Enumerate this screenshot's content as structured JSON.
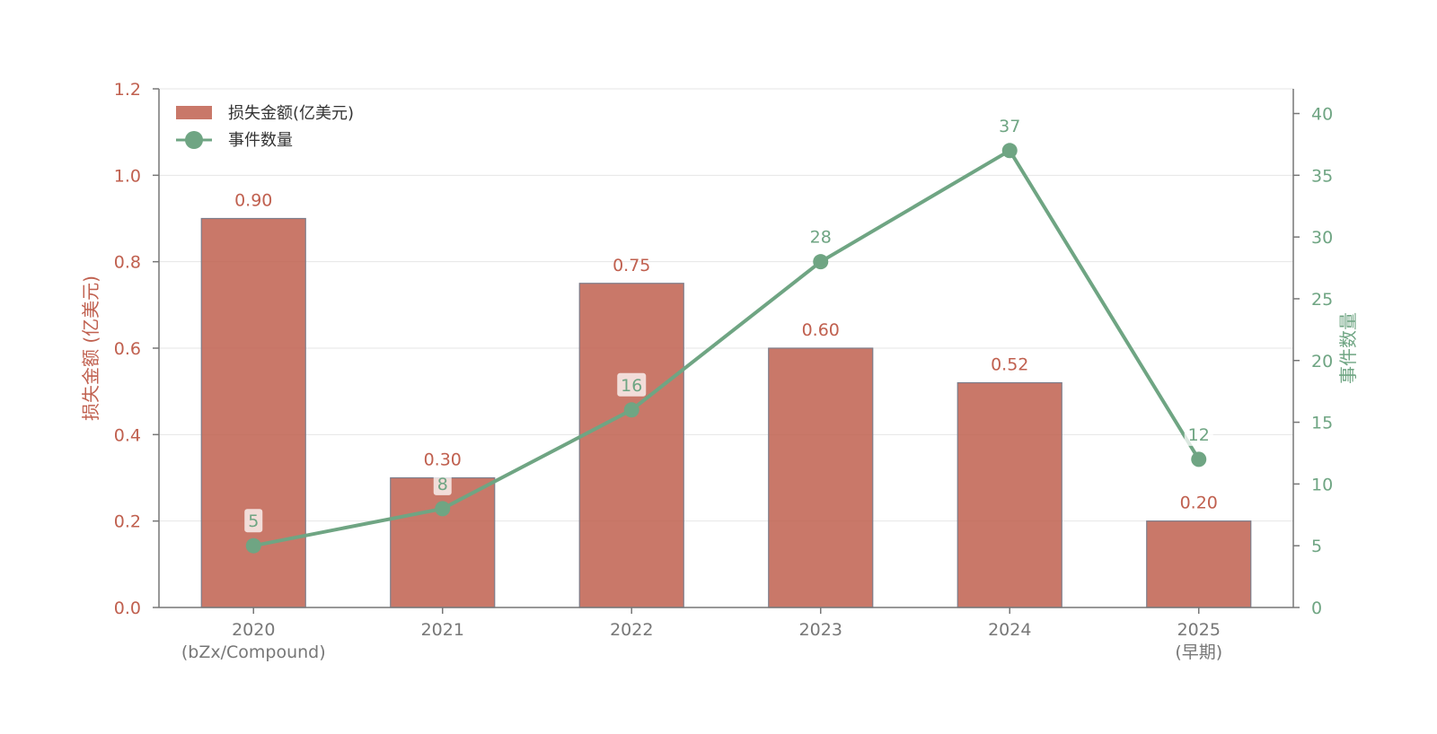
{
  "chart_data": {
    "type": "bar",
    "categories": [
      [
        "2020",
        "(bZx/Compound)"
      ],
      [
        "2021"
      ],
      [
        "2022"
      ],
      [
        "2023"
      ],
      [
        "2024"
      ],
      [
        "2025",
        "(早期)"
      ]
    ],
    "series": [
      {
        "name": "损失金额(亿美元)",
        "type": "bar",
        "axis": "left",
        "values": [
          0.9,
          0.3,
          0.75,
          0.6,
          0.52,
          0.2
        ],
        "labels": [
          "0.90",
          "0.30",
          "0.75",
          "0.60",
          "0.52",
          "0.20"
        ],
        "color": "#c0604f"
      },
      {
        "name": "事件数量",
        "type": "line",
        "axis": "right",
        "values": [
          5,
          8,
          16,
          28,
          37,
          12
        ],
        "labels": [
          "5",
          "8",
          "16",
          "28",
          "37",
          "12"
        ],
        "color": "#6fa583"
      }
    ],
    "y_left": {
      "label": "损失金额 (亿美元)",
      "lim": [
        0,
        1.2
      ],
      "ticks": [
        "0.0",
        "0.2",
        "0.4",
        "0.6",
        "0.8",
        "1.0",
        "1.2"
      ]
    },
    "y_right": {
      "label": "事件数量",
      "lim": [
        0,
        42
      ],
      "ticks": [
        "0",
        "5",
        "10",
        "15",
        "20",
        "25",
        "30",
        "35",
        "40"
      ]
    },
    "grid": true,
    "legend": "top-left"
  }
}
